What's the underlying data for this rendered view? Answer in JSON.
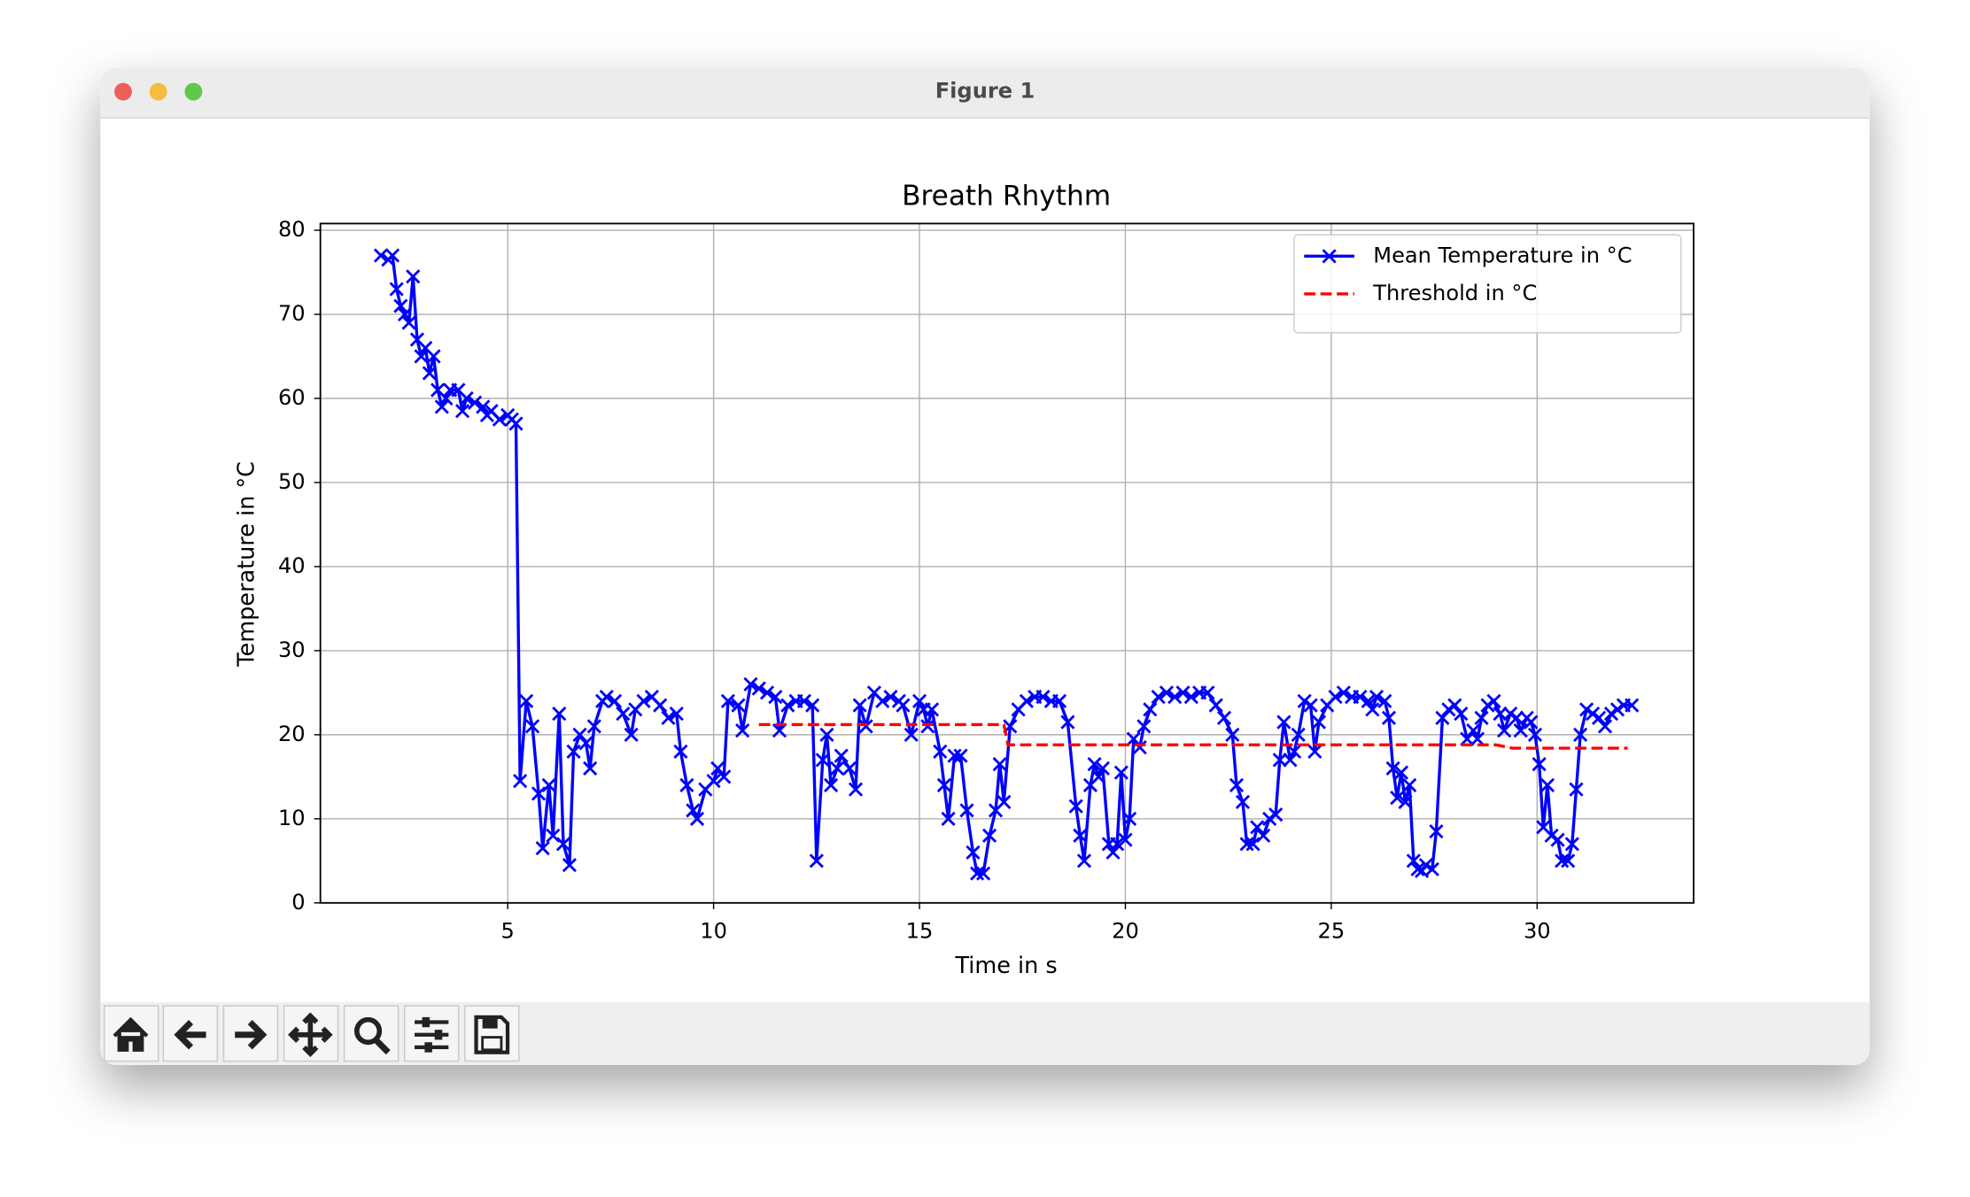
{
  "window": {
    "title": "Figure 1"
  },
  "chart_data": {
    "type": "line",
    "title": "Breath Rhythm",
    "xlabel": "Time in s",
    "ylabel": "Temperature in °C",
    "xlim": [
      0.45,
      33.8
    ],
    "ylim": [
      0,
      80.8
    ],
    "xticks": [
      5,
      10,
      15,
      20,
      25,
      30
    ],
    "yticks": [
      0,
      10,
      20,
      30,
      40,
      50,
      60,
      70,
      80
    ],
    "grid": true,
    "legend": "upper right",
    "series": [
      {
        "name": "Mean Temperature in °C",
        "color": "#0000ff",
        "linestyle": "solid",
        "marker": "x",
        "x": [
          1.92,
          2.1,
          2.2,
          2.3,
          2.4,
          2.5,
          2.6,
          2.7,
          2.8,
          2.9,
          3.0,
          3.1,
          3.2,
          3.3,
          3.4,
          3.5,
          3.6,
          3.8,
          3.9,
          4.0,
          4.2,
          4.4,
          4.5,
          4.6,
          4.8,
          5.0,
          5.1,
          5.2,
          5.3,
          5.45,
          5.6,
          5.75,
          5.85,
          6.0,
          6.1,
          6.25,
          6.35,
          6.5,
          6.6,
          6.75,
          6.9,
          7.0,
          7.1,
          7.3,
          7.4,
          7.6,
          7.8,
          8.0,
          8.1,
          8.3,
          8.5,
          8.7,
          8.9,
          9.1,
          9.2,
          9.35,
          9.5,
          9.6,
          9.8,
          10.0,
          10.1,
          10.25,
          10.35,
          10.6,
          10.7,
          10.9,
          11.1,
          11.3,
          11.5,
          11.6,
          11.8,
          12.0,
          12.2,
          12.4,
          12.5,
          12.65,
          12.75,
          12.85,
          13.0,
          13.1,
          13.3,
          13.45,
          13.55,
          13.7,
          13.9,
          14.1,
          14.3,
          14.5,
          14.6,
          14.8,
          15.0,
          15.1,
          15.2,
          15.3,
          15.5,
          15.6,
          15.7,
          15.85,
          16.0,
          16.15,
          16.3,
          16.4,
          16.55,
          16.7,
          16.85,
          16.95,
          17.05,
          17.2,
          17.4,
          17.6,
          17.8,
          18.0,
          18.2,
          18.4,
          18.6,
          18.8,
          18.9,
          19.0,
          19.15,
          19.25,
          19.35,
          19.45,
          19.6,
          19.7,
          19.8,
          19.9,
          20.0,
          20.1,
          20.2,
          20.35,
          20.45,
          20.6,
          20.8,
          21.0,
          21.2,
          21.4,
          21.6,
          21.8,
          22.0,
          22.2,
          22.4,
          22.6,
          22.7,
          22.85,
          22.95,
          23.1,
          23.2,
          23.35,
          23.5,
          23.65,
          23.75,
          23.85,
          24.0,
          24.1,
          24.2,
          24.35,
          24.5,
          24.6,
          24.7,
          24.9,
          25.1,
          25.3,
          25.5,
          25.7,
          25.9,
          26.0,
          26.1,
          26.3,
          26.4,
          26.5,
          26.6,
          26.7,
          26.8,
          26.9,
          27.0,
          27.1,
          27.2,
          27.3,
          27.45,
          27.55,
          27.7,
          27.85,
          28.0,
          28.15,
          28.3,
          28.45,
          28.55,
          28.65,
          28.8,
          28.95,
          29.1,
          29.2,
          29.35,
          29.5,
          29.6,
          29.75,
          29.85,
          29.95,
          30.05,
          30.15,
          30.25,
          30.35,
          30.5,
          30.6,
          30.75,
          30.85,
          30.95,
          31.05,
          31.2,
          31.35,
          31.5,
          31.65,
          31.8,
          31.95,
          32.1,
          32.3
        ],
        "values": [
          77,
          76.5,
          77,
          73,
          71,
          70,
          69,
          74.5,
          67,
          65,
          66,
          63,
          65,
          61,
          59,
          60,
          61,
          61,
          58.5,
          60,
          59.5,
          59,
          58,
          58.5,
          57.5,
          58,
          57.5,
          57,
          14.5,
          24,
          21,
          13,
          6.5,
          14,
          8,
          22.5,
          7,
          4.5,
          18,
          20,
          19,
          16,
          21,
          24,
          24.5,
          24,
          22.5,
          20,
          23,
          24,
          24.5,
          23.5,
          22,
          22.5,
          18,
          14,
          11,
          10,
          13.5,
          14.5,
          16,
          15,
          24,
          23.5,
          20.5,
          26,
          25.5,
          25,
          24.5,
          20.5,
          23.5,
          24,
          24,
          23.5,
          5,
          17,
          20,
          14,
          16,
          17.5,
          16,
          13.5,
          23.5,
          21,
          25,
          24,
          24.5,
          24,
          23.5,
          20,
          24,
          23,
          21,
          23,
          18,
          14,
          10,
          17.5,
          17.5,
          11,
          6,
          3.5,
          3.5,
          8,
          11,
          16.5,
          12,
          21,
          23,
          24,
          24.5,
          24.5,
          24,
          24,
          21.5,
          11.5,
          8,
          5,
          14,
          16.5,
          15,
          16,
          7,
          6,
          7,
          15.5,
          7.5,
          10,
          19.5,
          18.5,
          21,
          23,
          24.5,
          25,
          24.5,
          25,
          24.5,
          25,
          25,
          23.5,
          22,
          20,
          14,
          12,
          7,
          7,
          9,
          8,
          10,
          10.5,
          17,
          21.5,
          17,
          18,
          20,
          24,
          23.5,
          18,
          21.5,
          23.5,
          24.5,
          25,
          24.5,
          24.5,
          24,
          23,
          24.5,
          24,
          22,
          16,
          12.5,
          15.5,
          12,
          14,
          5,
          4,
          3.8,
          4.5,
          4,
          8.5,
          22,
          23,
          23.5,
          22.5,
          19.5,
          20.5,
          19.5,
          22,
          23.5,
          24,
          22.5,
          20.5,
          22.5,
          22,
          20.5,
          22,
          21.5,
          20,
          16.5,
          9,
          14,
          8,
          7.5,
          5,
          5,
          7,
          13.5,
          20,
          23,
          22.5,
          22,
          21,
          22.5,
          23,
          23.5,
          23.5
        ]
      },
      {
        "name": "Threshold in °C",
        "color": "#ff0000",
        "linestyle": "dashed",
        "x": [
          11.1,
          17.05,
          17.15,
          29.0,
          29.4,
          32.2
        ],
        "values": [
          21.2,
          21.2,
          18.8,
          18.8,
          18.4,
          18.4
        ]
      }
    ]
  }
}
